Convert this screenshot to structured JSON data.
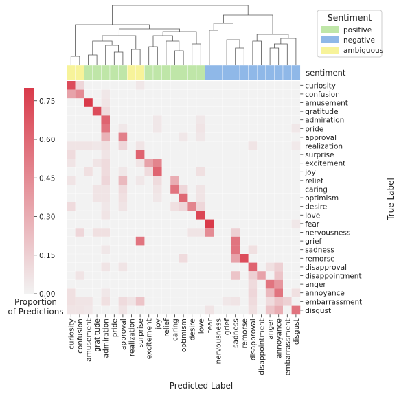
{
  "chart_data": {
    "type": "heatmap",
    "xlabel": "Predicted Label",
    "ylabel": "True Label",
    "categories": [
      "curiosity",
      "confusion",
      "amusement",
      "gratitude",
      "admiration",
      "pride",
      "approval",
      "realization",
      "surprise",
      "excitement",
      "joy",
      "relief",
      "caring",
      "optimism",
      "desire",
      "love",
      "fear",
      "nervousness",
      "grief",
      "sadness",
      "remorse",
      "disapproval",
      "disappointment",
      "anger",
      "annoyance",
      "embarrassment",
      "disgust"
    ],
    "sentiment_row_label": "sentiment",
    "sentiment": [
      "ambiguous",
      "ambiguous",
      "positive",
      "positive",
      "positive",
      "positive",
      "positive",
      "ambiguous",
      "ambiguous",
      "positive",
      "positive",
      "positive",
      "positive",
      "positive",
      "positive",
      "positive",
      "negative",
      "negative",
      "negative",
      "negative",
      "negative",
      "negative",
      "negative",
      "negative",
      "negative",
      "negative",
      "negative"
    ],
    "legend": {
      "title": "Sentiment",
      "entries": [
        {
          "label": "positive",
          "color": "#bfe6a8"
        },
        {
          "label": "negative",
          "color": "#8fb8e8"
        },
        {
          "label": "ambiguous",
          "color": "#f7f39a"
        }
      ],
      "placement": "top-right"
    },
    "colorbar": {
      "label_line1": "Proportion",
      "label_line2": "of Predictions",
      "range": [
        0,
        0.8
      ],
      "ticks": [
        "0.00",
        "0.15",
        "0.30",
        "0.45",
        "0.60",
        "0.75"
      ],
      "color_low": "#f2f2f2",
      "color_high": "#d93a4a"
    },
    "dendrogram": "shown above columns",
    "cells": [
      [
        0,
        0,
        0.72
      ],
      [
        0,
        1,
        0.12
      ],
      [
        0,
        8,
        0.05
      ],
      [
        1,
        0,
        0.35
      ],
      [
        1,
        1,
        0.45
      ],
      [
        1,
        4,
        0.05
      ],
      [
        2,
        2,
        0.8
      ],
      [
        2,
        4,
        0.06
      ],
      [
        3,
        3,
        0.72
      ],
      [
        3,
        4,
        0.1
      ],
      [
        4,
        4,
        0.62
      ],
      [
        4,
        10,
        0.05
      ],
      [
        4,
        15,
        0.05
      ],
      [
        5,
        4,
        0.55
      ],
      [
        5,
        6,
        0.05
      ],
      [
        5,
        10,
        0.05
      ],
      [
        5,
        15,
        0.06
      ],
      [
        5,
        26,
        0.05
      ],
      [
        6,
        4,
        0.28
      ],
      [
        6,
        6,
        0.5
      ],
      [
        6,
        13,
        0.05
      ],
      [
        6,
        15,
        0.05
      ],
      [
        7,
        0,
        0.06
      ],
      [
        7,
        1,
        0.06
      ],
      [
        7,
        2,
        0.06
      ],
      [
        7,
        3,
        0.05
      ],
      [
        7,
        4,
        0.08
      ],
      [
        7,
        6,
        0.12
      ],
      [
        7,
        8,
        0.06
      ],
      [
        7,
        21,
        0.06
      ],
      [
        7,
        26,
        0.04
      ],
      [
        8,
        0,
        0.1
      ],
      [
        8,
        4,
        0.06
      ],
      [
        8,
        8,
        0.62
      ],
      [
        9,
        0,
        0.06
      ],
      [
        9,
        3,
        0.06
      ],
      [
        9,
        4,
        0.1
      ],
      [
        9,
        8,
        0.06
      ],
      [
        9,
        9,
        0.35
      ],
      [
        9,
        10,
        0.48
      ],
      [
        10,
        2,
        0.08
      ],
      [
        10,
        4,
        0.1
      ],
      [
        10,
        6,
        0.05
      ],
      [
        10,
        9,
        0.1
      ],
      [
        10,
        10,
        0.62
      ],
      [
        10,
        15,
        0.08
      ],
      [
        11,
        0,
        0.06
      ],
      [
        11,
        4,
        0.12
      ],
      [
        11,
        6,
        0.25
      ],
      [
        11,
        8,
        0.05
      ],
      [
        11,
        10,
        0.1
      ],
      [
        11,
        12,
        0.3
      ],
      [
        12,
        3,
        0.06
      ],
      [
        12,
        4,
        0.06
      ],
      [
        12,
        6,
        0.1
      ],
      [
        12,
        10,
        0.06
      ],
      [
        12,
        12,
        0.55
      ],
      [
        12,
        13,
        0.12
      ],
      [
        12,
        15,
        0.06
      ],
      [
        13,
        3,
        0.06
      ],
      [
        13,
        4,
        0.06
      ],
      [
        13,
        6,
        0.08
      ],
      [
        13,
        10,
        0.05
      ],
      [
        13,
        13,
        0.6
      ],
      [
        13,
        15,
        0.06
      ],
      [
        14,
        0,
        0.1
      ],
      [
        14,
        4,
        0.05
      ],
      [
        14,
        6,
        0.06
      ],
      [
        14,
        12,
        0.08
      ],
      [
        14,
        13,
        0.12
      ],
      [
        14,
        14,
        0.48
      ],
      [
        14,
        15,
        0.12
      ],
      [
        15,
        4,
        0.06
      ],
      [
        15,
        15,
        0.75
      ],
      [
        16,
        16,
        0.8
      ],
      [
        16,
        26,
        0.05
      ],
      [
        17,
        1,
        0.12
      ],
      [
        17,
        3,
        0.08
      ],
      [
        17,
        4,
        0.08
      ],
      [
        17,
        14,
        0.06
      ],
      [
        17,
        15,
        0.06
      ],
      [
        17,
        16,
        0.45
      ],
      [
        17,
        19,
        0.15
      ],
      [
        18,
        8,
        0.55
      ],
      [
        18,
        19,
        0.55
      ],
      [
        19,
        4,
        0.05
      ],
      [
        19,
        19,
        0.55
      ],
      [
        19,
        21,
        0.08
      ],
      [
        20,
        13,
        0.1
      ],
      [
        20,
        19,
        0.35
      ],
      [
        20,
        20,
        0.72
      ],
      [
        21,
        4,
        0.06
      ],
      [
        21,
        6,
        0.06
      ],
      [
        21,
        21,
        0.62
      ],
      [
        21,
        23,
        0.08
      ],
      [
        21,
        24,
        0.15
      ],
      [
        22,
        1,
        0.06
      ],
      [
        22,
        19,
        0.2
      ],
      [
        22,
        21,
        0.15
      ],
      [
        22,
        22,
        0.35
      ],
      [
        22,
        24,
        0.2
      ],
      [
        23,
        21,
        0.1
      ],
      [
        23,
        23,
        0.55
      ],
      [
        23,
        24,
        0.4
      ],
      [
        24,
        0,
        0.08
      ],
      [
        24,
        4,
        0.05
      ],
      [
        24,
        21,
        0.12
      ],
      [
        24,
        23,
        0.25
      ],
      [
        24,
        24,
        0.55
      ],
      [
        24,
        26,
        0.08
      ],
      [
        25,
        0,
        0.08
      ],
      [
        25,
        1,
        0.06
      ],
      [
        25,
        2,
        0.06
      ],
      [
        25,
        4,
        0.08
      ],
      [
        25,
        6,
        0.1
      ],
      [
        25,
        7,
        0.06
      ],
      [
        25,
        8,
        0.2
      ],
      [
        25,
        18,
        0.05
      ],
      [
        25,
        19,
        0.06
      ],
      [
        25,
        21,
        0.1
      ],
      [
        25,
        23,
        0.1
      ],
      [
        25,
        24,
        0.2
      ],
      [
        25,
        25,
        0.15
      ],
      [
        26,
        0,
        0.06
      ],
      [
        26,
        1,
        0.06
      ],
      [
        26,
        2,
        0.05
      ],
      [
        26,
        6,
        0.06
      ],
      [
        26,
        16,
        0.06
      ],
      [
        26,
        21,
        0.08
      ],
      [
        26,
        23,
        0.2
      ],
      [
        26,
        24,
        0.3
      ],
      [
        26,
        26,
        0.55
      ]
    ]
  }
}
